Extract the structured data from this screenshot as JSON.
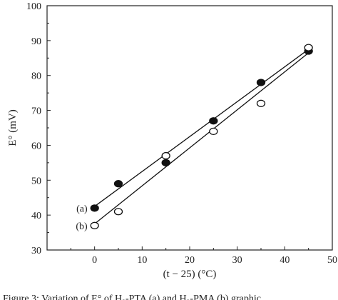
{
  "caption": "Figure 3: Variation of E° of H₂-PTA (a) and H₂-PMA (b) graphic",
  "chart_data": {
    "type": "scatter",
    "title": "",
    "xlabel": "(t − 25) (°C)",
    "ylabel": "E° (mV)",
    "xlim": [
      -10,
      50
    ],
    "ylim": [
      30,
      100
    ],
    "xticks": [
      0,
      10,
      20,
      30,
      40,
      50
    ],
    "xtick_labels": [
      "0",
      "10",
      "20",
      "30",
      "40",
      "50"
    ],
    "yticks": [
      30,
      40,
      50,
      60,
      70,
      80,
      90,
      100
    ],
    "ytick_labels": [
      "30",
      "40",
      "50",
      "60",
      "70",
      "80",
      "90",
      "100"
    ],
    "grid": false,
    "series": [
      {
        "name": "(a)",
        "marker": "filled-circle",
        "color": "#111111",
        "x": [
          0,
          5,
          15,
          25,
          35,
          45
        ],
        "y": [
          42,
          49,
          55,
          67,
          78,
          87
        ],
        "fit_line": {
          "x": [
            0,
            45
          ],
          "y": [
            42.5,
            87.5
          ]
        }
      },
      {
        "name": "(b)",
        "marker": "open-circle",
        "color": "#111111",
        "x": [
          0,
          5,
          15,
          25,
          35,
          45
        ],
        "y": [
          37,
          41,
          57,
          64,
          72,
          88
        ],
        "fit_line": {
          "x": [
            0,
            45
          ],
          "y": [
            37.5,
            86.5
          ]
        }
      }
    ]
  }
}
